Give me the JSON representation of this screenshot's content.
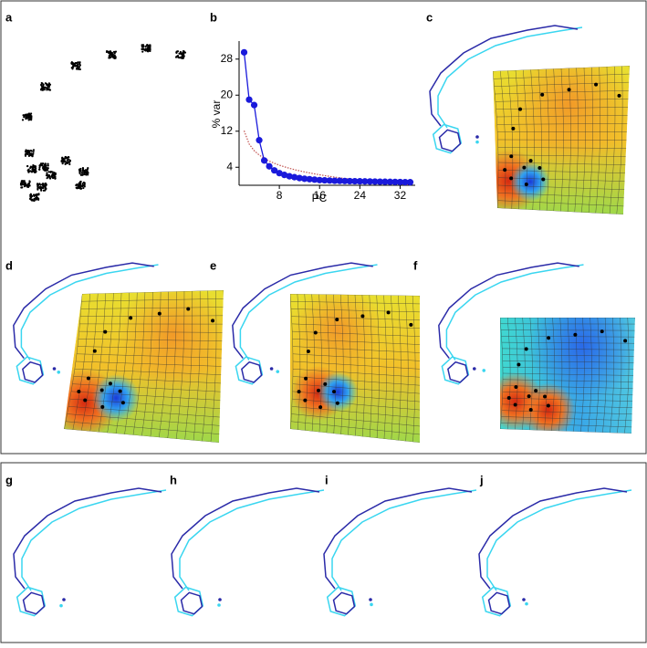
{
  "panels": [
    "a",
    "b",
    "c",
    "d",
    "e",
    "f",
    "g",
    "h",
    "i",
    "j"
  ],
  "chart_data": {
    "type": "line",
    "x_label": "PC",
    "y_label": "% var",
    "x": [
      1,
      2,
      3,
      4,
      5,
      6,
      7,
      8,
      9,
      10,
      11,
      12,
      13,
      14,
      15,
      16,
      17,
      18,
      19,
      20,
      21,
      22,
      23,
      24,
      25,
      26,
      27,
      28,
      29,
      30,
      31,
      32,
      33,
      34
    ],
    "series": [
      {
        "color": "#1a1adb",
        "marker": "circle",
        "values": [
          29.5,
          19,
          17.8,
          10,
          5.5,
          4.2,
          3.3,
          2.7,
          2.3,
          2.0,
          1.8,
          1.6,
          1.45,
          1.35,
          1.25,
          1.15,
          1.1,
          1.05,
          1.0,
          0.98,
          0.95,
          0.92,
          0.9,
          0.88,
          0.86,
          0.84,
          0.82,
          0.8,
          0.78,
          0.76,
          0.74,
          0.72,
          0.7,
          0.68
        ]
      },
      {
        "color": "#c0504d",
        "style": "dotted",
        "values": [
          12.1,
          9.15,
          7.68,
          6.7,
          5.96,
          5.37,
          4.88,
          4.46,
          4.1,
          3.77,
          3.48,
          3.21,
          2.96,
          2.74,
          2.53,
          2.33,
          2.15,
          1.97,
          1.81,
          1.65,
          1.51,
          1.37,
          1.23,
          1.1,
          0.98,
          0.86,
          0.75,
          0.64,
          0.54,
          0.44,
          0.34,
          0.25,
          0.16,
          0.09
        ]
      }
    ],
    "xlim": [
      0,
      35
    ],
    "xticks": [
      8,
      16,
      24,
      32
    ],
    "ylim": [
      0,
      32
    ],
    "yticks": [
      4,
      12,
      20,
      28
    ]
  }
}
